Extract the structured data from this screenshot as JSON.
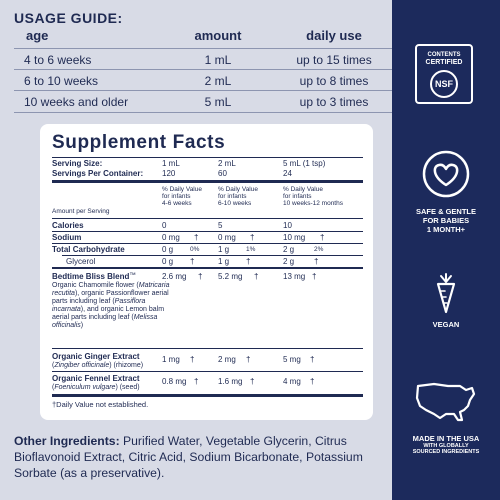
{
  "usage_guide": {
    "title": "USAGE GUIDE:",
    "headers": [
      "age",
      "amount",
      "daily use"
    ],
    "rows": [
      [
        "4 to 6 weeks",
        "1 mL",
        "up to 15 times"
      ],
      [
        "6 to 10 weeks",
        "2 mL",
        "up to 8 times"
      ],
      [
        "10 weeks and older",
        "5 mL",
        "up to 3 times"
      ]
    ]
  },
  "supplement_facts": {
    "title": "Supplement Facts",
    "serving_size_label": "Serving Size:",
    "serving_sizes": [
      "1 mL",
      "2 mL",
      "5 mL (1 tsp)"
    ],
    "servings_label": "Servings Per Container:",
    "servings": [
      "120",
      "60",
      "24"
    ],
    "amount_per_serving_label": "Amount per Serving",
    "dv_headers": [
      {
        "line1": "% Daily Value",
        "line2": "for infants",
        "line3": "4-6 weeks"
      },
      {
        "line1": "% Daily Value",
        "line2": "for infants",
        "line3": "6-10 weeks"
      },
      {
        "line1": "% Daily Value",
        "line2": "for infants",
        "line3": "10 weeks-12 months"
      }
    ],
    "calories": {
      "label": "Calories",
      "values": [
        "0",
        "5",
        "10"
      ]
    },
    "sodium": {
      "label": "Sodium",
      "values": [
        "0 mg",
        "0 mg",
        "10 mg"
      ],
      "dv": [
        "†",
        "†",
        "†"
      ]
    },
    "carbs": {
      "label": "Total Carbohydrate",
      "values": [
        "0 g",
        "1 g",
        "2 g"
      ],
      "dv": [
        "0%",
        "1%",
        "2%"
      ]
    },
    "glycerol": {
      "label": "Glycerol",
      "values": [
        "0 g",
        "1 g",
        "2 g"
      ],
      "dv": [
        "†",
        "†",
        "†"
      ]
    },
    "blend": {
      "label": "Bedtime Bliss Blend",
      "tm": "™",
      "values": [
        "2.6 mg",
        "5.2 mg",
        "13 mg"
      ],
      "dv": [
        "†",
        "†",
        "†"
      ],
      "description_parts": [
        "Organic Chamomile flower (",
        "Matricaria recutita",
        "), organic Passionflower aerial parts including leaf (",
        "Passiflora incarnata",
        "), and organic Lemon balm aerial parts including leaf (",
        "Melissa officinalis",
        ")"
      ]
    },
    "ginger": {
      "label": "Organic Ginger Extract",
      "latin": "Zingiber officinale",
      "part": " (rhizome)",
      "values": [
        "1 mg",
        "2 mg",
        "5 mg"
      ],
      "dv": [
        "†",
        "†",
        "†"
      ]
    },
    "fennel": {
      "label": "Organic Fennel Extract",
      "latin": "Foeniculum vulgare",
      "part": " (seed)",
      "values": [
        "0.8 mg",
        "1.6 mg",
        "4 mg"
      ],
      "dv": [
        "†",
        "†",
        "†"
      ]
    },
    "footnote": "†Daily Value not established."
  },
  "other_ingredients": {
    "label": "Other Ingredients:",
    "text": " Purified Water, Vegetable Glycerin, Citrus Bioflavonoid Extract, Citric Acid, Sodium Bicarbonate, Potassium Sorbate (as a preservative)."
  },
  "sidebar": {
    "nsf": {
      "line1": "CONTENTS",
      "line2": "CERTIFIED",
      "mark": "NSF",
      "icon": "nsf-certified-icon"
    },
    "safe": {
      "line1": "SAFE & GENTLE",
      "line2": "FOR BABIES",
      "line3": "1 MONTH+",
      "icon": "heart-icon"
    },
    "vegan": {
      "label": "VEGAN",
      "icon": "carrot-icon"
    },
    "usa": {
      "line1": "MADE IN THE USA",
      "line2": "WITH GLOBALLY",
      "line3": "SOURCED INGREDIENTS",
      "icon": "usa-map-icon"
    }
  },
  "colors": {
    "background": "#d8dbe6",
    "sidebar": "#1c2a5c",
    "text": "#1f2a52",
    "panel": "#ffffff"
  }
}
